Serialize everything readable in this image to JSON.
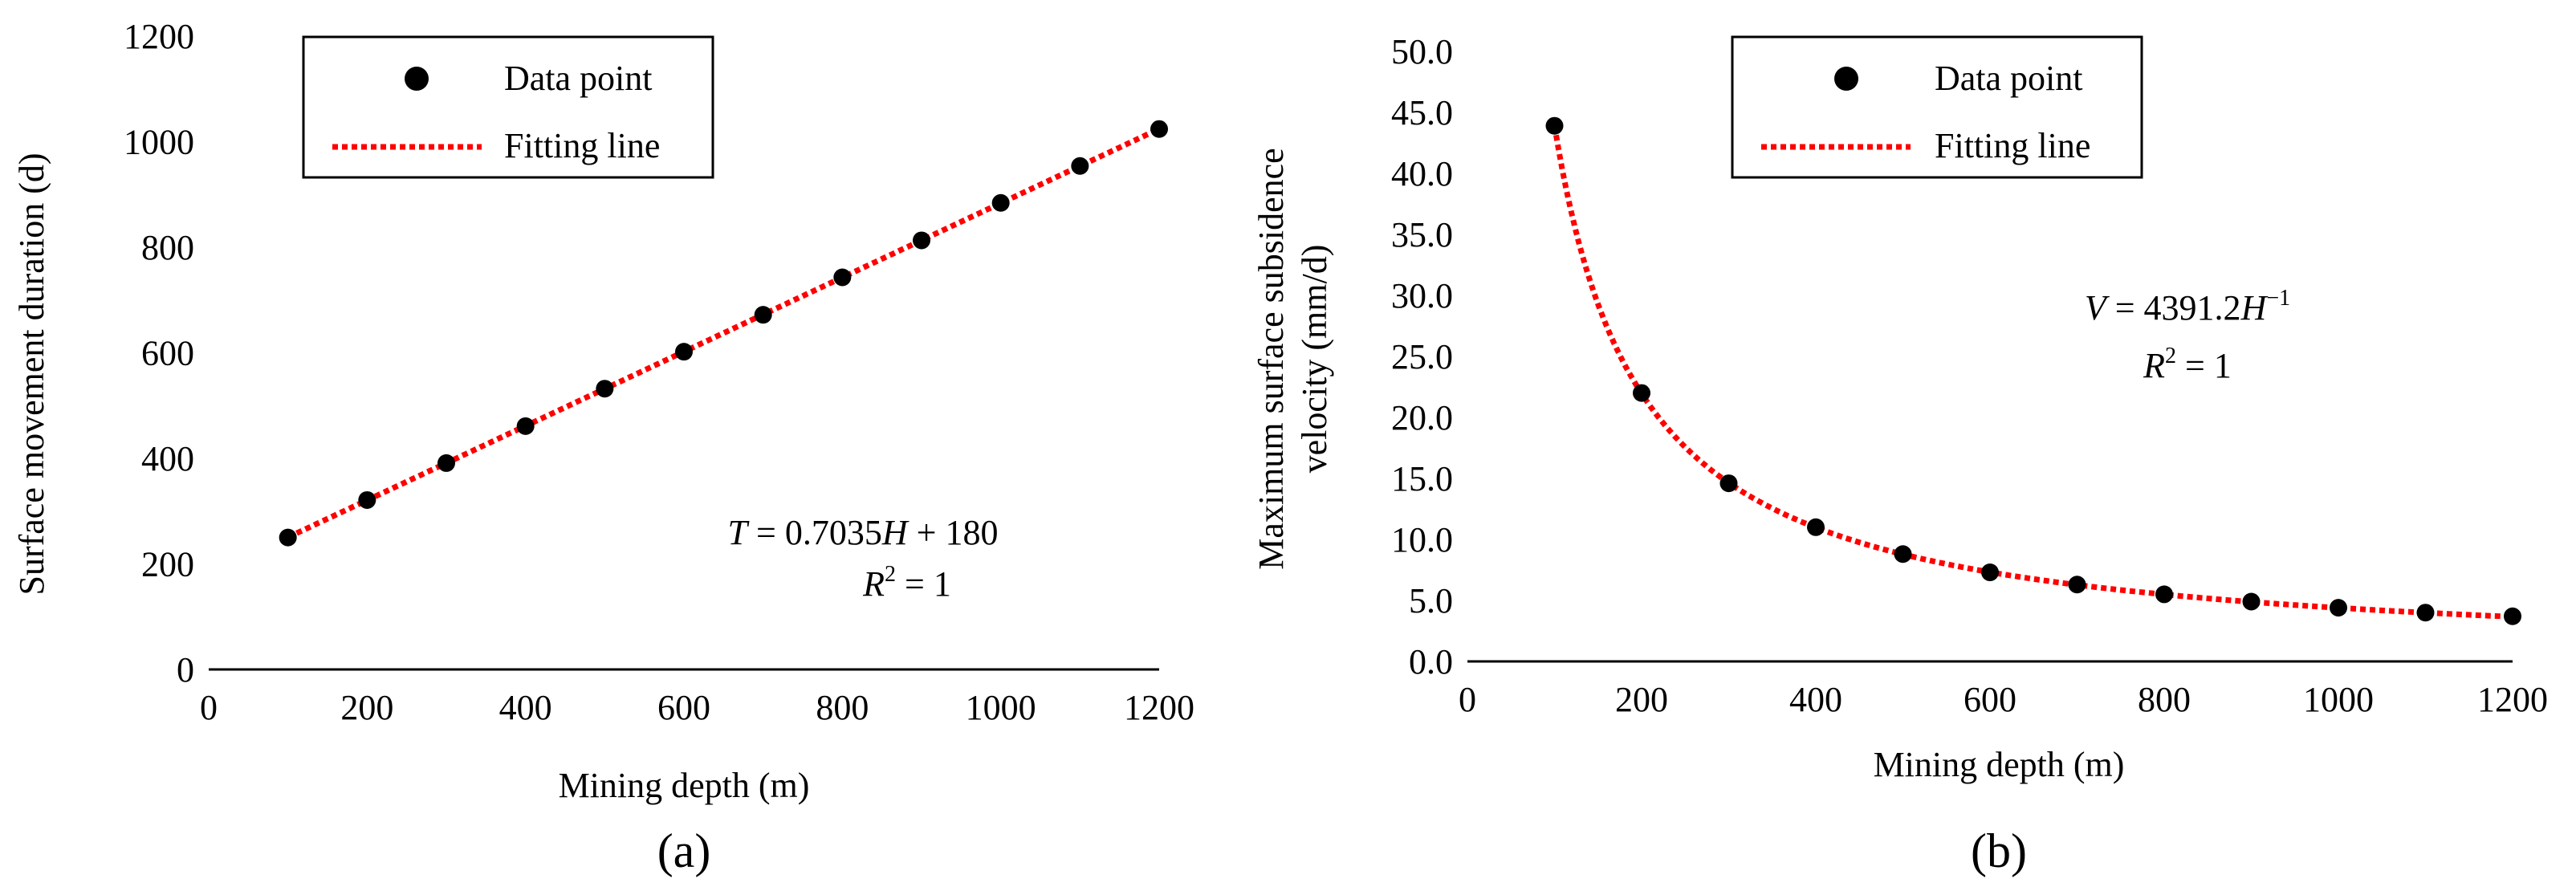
{
  "colors": {
    "point": "#000000",
    "fit_line": "#ff0000",
    "axis": "#000000",
    "legend_border": "#000000"
  },
  "legend": {
    "data_label": "Data point",
    "fit_label": "Fitting line"
  },
  "chart_data": [
    {
      "type": "scatter",
      "panel_label": "(a)",
      "title": "",
      "xlabel": "Mining depth (m)",
      "ylabel": "Surface movement duration (d)",
      "xlim": [
        0,
        1200
      ],
      "ylim": [
        0,
        1200
      ],
      "xticks": [
        "0",
        "200",
        "400",
        "600",
        "800",
        "1000",
        "1200"
      ],
      "yticks": [
        "0",
        "200",
        "400",
        "600",
        "800",
        "1000",
        "1200"
      ],
      "series": [
        {
          "name": "Data point",
          "x": [
            100,
            200,
            300,
            400,
            500,
            600,
            700,
            800,
            900,
            1000,
            1100,
            1200
          ],
          "values": [
            250,
            321,
            391,
            461,
            532,
            602,
            672,
            743,
            813,
            884,
            954,
            1024
          ]
        },
        {
          "name": "Fitting line",
          "model": "linear",
          "slope": 0.7035,
          "intercept": 180,
          "x_range": [
            100,
            1200
          ]
        }
      ],
      "equation": {
        "lhs": "T",
        "rhs": "= 0.7035",
        "var": "H",
        "tail": " + 180",
        "r2_sym": "R",
        "r2_sup": "2",
        "r2_val": " = 1"
      },
      "legend_position": "top-left"
    },
    {
      "type": "scatter",
      "panel_label": "(b)",
      "title": "",
      "xlabel": "Mining depth (m)",
      "ylabel_line1": "Maximum surface subsidence",
      "ylabel_line2": "velocity (mm/d)",
      "xlim": [
        0,
        1200
      ],
      "ylim": [
        0,
        50
      ],
      "xticks": [
        "0",
        "200",
        "400",
        "600",
        "800",
        "1000",
        "1200"
      ],
      "yticks": [
        "0.0",
        "5.0",
        "10.0",
        "15.0",
        "20.0",
        "25.0",
        "30.0",
        "35.0",
        "40.0",
        "45.0",
        "50.0"
      ],
      "series": [
        {
          "name": "Data point",
          "x": [
            100,
            200,
            300,
            400,
            500,
            600,
            700,
            800,
            900,
            1000,
            1100,
            1200
          ],
          "values": [
            43.9,
            22.0,
            14.6,
            11.0,
            8.8,
            7.3,
            6.3,
            5.5,
            4.9,
            4.4,
            4.0,
            3.7
          ]
        },
        {
          "name": "Fitting line",
          "model": "power",
          "coefficient": 4391.2,
          "exponent": -1,
          "x_range": [
            100,
            1200
          ]
        }
      ],
      "equation": {
        "lhs": "V",
        "rhs": "= 4391.2",
        "var": "H",
        "exp": "−1",
        "r2_sym": "R",
        "r2_sup": "2",
        "r2_val": " = 1"
      },
      "legend_position": "top-center"
    }
  ]
}
